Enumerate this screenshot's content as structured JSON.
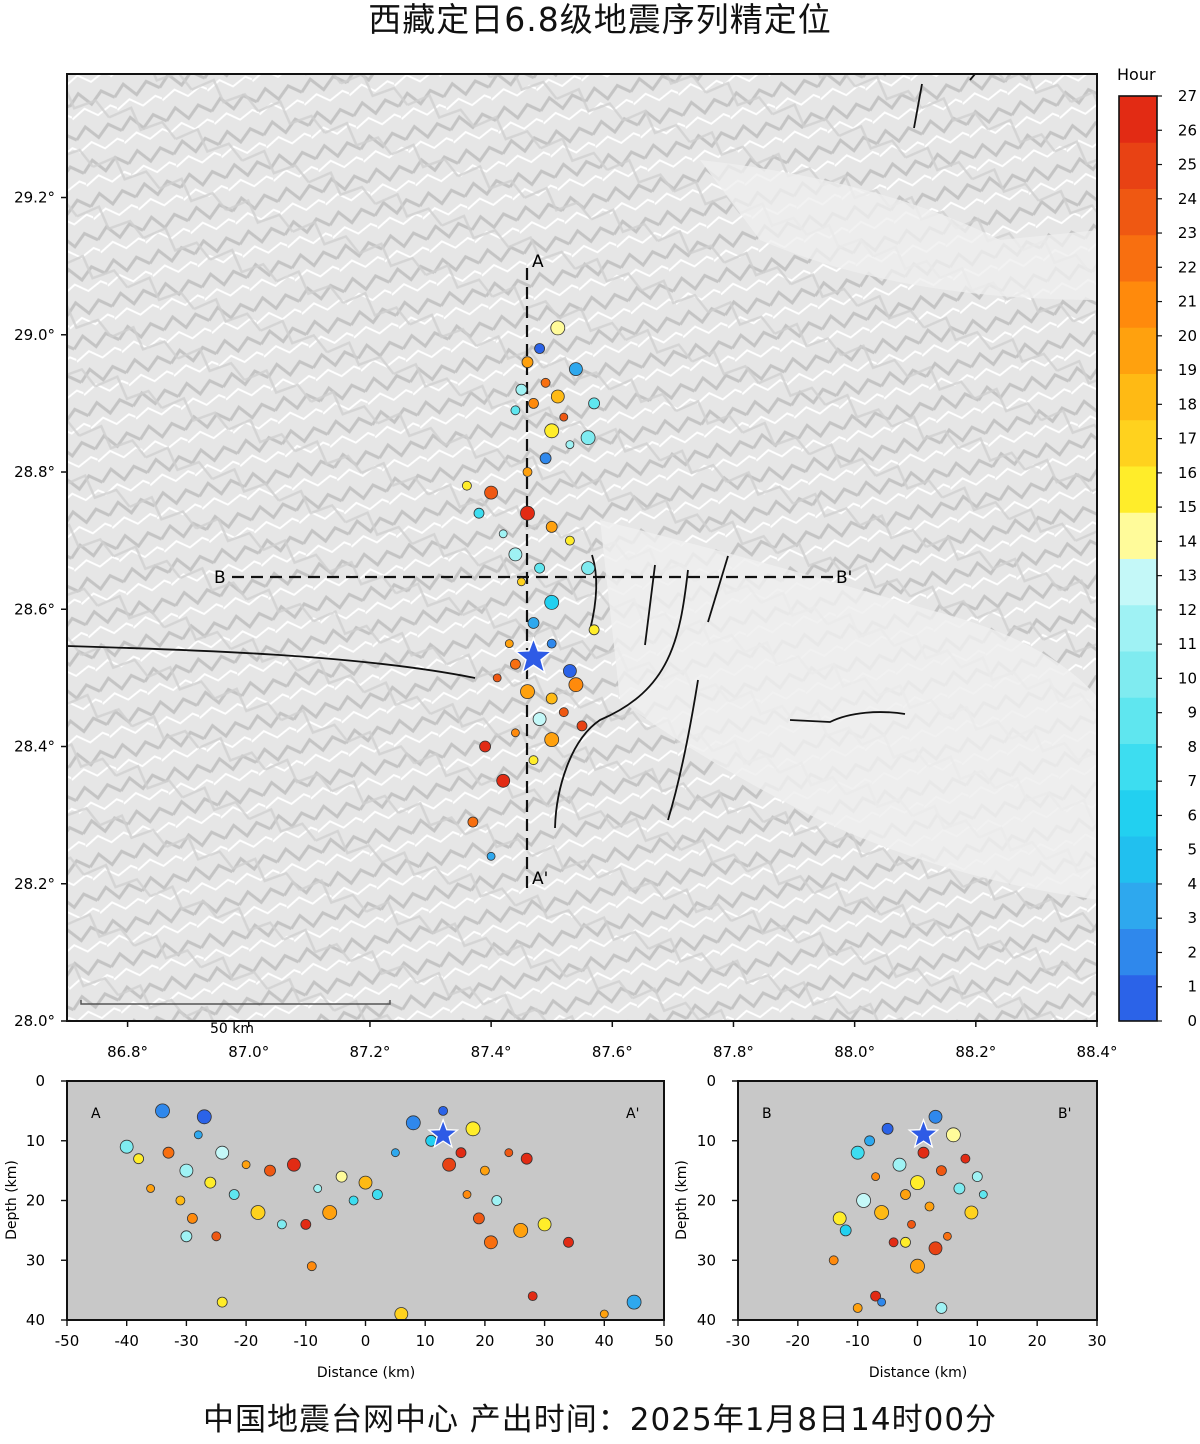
{
  "title": "西藏定日6.8级地震序列精定位",
  "footer": "中国地震台网中心  产出时间：2025年1月8日14时00分",
  "map": {
    "x_ticks": [
      "86.8°",
      "87.0°",
      "87.2°",
      "87.4°",
      "87.6°",
      "87.8°",
      "88.0°",
      "88.2°",
      "88.4°"
    ],
    "x_tick_values": [
      86.8,
      87.0,
      87.2,
      87.4,
      87.6,
      87.8,
      88.0,
      88.2,
      88.4
    ],
    "y_ticks": [
      "28.0°",
      "28.2°",
      "28.4°",
      "28.6°",
      "28.8°",
      "29.0°",
      "29.2°"
    ],
    "y_tick_values": [
      28.0,
      28.2,
      28.4,
      28.6,
      28.8,
      29.0,
      29.2
    ],
    "lon_range": [
      86.7,
      88.4
    ],
    "lat_range": [
      28.0,
      29.38
    ],
    "scale_label": "50 km",
    "profile_labels": {
      "a": "A",
      "a_end": "A'",
      "b": "B",
      "b_end": "B'"
    },
    "mainshock": {
      "lon": 87.47,
      "lat": 28.53,
      "color": "#2e5be6"
    }
  },
  "colorbar": {
    "title": "Hour",
    "ticks": [
      "0",
      "1",
      "2",
      "3",
      "4",
      "5",
      "6",
      "7",
      "8",
      "9",
      "10",
      "11",
      "12",
      "13",
      "14",
      "15",
      "16",
      "17",
      "18",
      "19",
      "20",
      "21",
      "22",
      "23",
      "24",
      "25",
      "26",
      "27"
    ],
    "colors": [
      "#2b63e8",
      "#2f88ec",
      "#2ea8ee",
      "#21c0ef",
      "#22d0f0",
      "#3dddf0",
      "#5fe6ef",
      "#7febf0",
      "#9ff2f4",
      "#c4f8f8",
      "#fffb9a",
      "#ffed2a",
      "#ffd21e",
      "#ffba14",
      "#ffa10e",
      "#ff8a0c",
      "#f86f10",
      "#ef5812",
      "#e84214",
      "#e22b14"
    ]
  },
  "profile_aa": {
    "corner_left": "A",
    "corner_right": "A'",
    "x_ticks": [
      "-50",
      "-40",
      "-30",
      "-20",
      "-10",
      "0",
      "10",
      "20",
      "30",
      "40",
      "50"
    ],
    "x_range": [
      -50,
      50
    ],
    "y_ticks": [
      "0",
      "10",
      "20",
      "30",
      "40"
    ],
    "y_range": [
      0,
      40
    ],
    "xlabel": "Distance (km)",
    "ylabel": "Depth (km)",
    "mainshock": {
      "dist": 13,
      "depth": 9
    }
  },
  "profile_bb": {
    "corner_left": "B",
    "corner_right": "B'",
    "x_ticks": [
      "-30",
      "-20",
      "-10",
      "0",
      "10",
      "20",
      "30"
    ],
    "x_range": [
      -30,
      30
    ],
    "y_ticks": [
      "0",
      "10",
      "20",
      "30",
      "40"
    ],
    "y_range": [
      0,
      40
    ],
    "xlabel": "Distance (km)",
    "ylabel": "Depth (km)",
    "mainshock": {
      "dist": 1,
      "depth": 9
    }
  },
  "chart_data": {
    "type": "scatter",
    "note_color_by": "Hour",
    "map_events": [
      {
        "lon": 87.46,
        "lat": 28.96,
        "hour": 20
      },
      {
        "lon": 87.49,
        "lat": 28.93,
        "hour": 22
      },
      {
        "lon": 87.51,
        "lat": 28.91,
        "hour": 18
      },
      {
        "lon": 87.47,
        "lat": 28.9,
        "hour": 21
      },
      {
        "lon": 87.52,
        "lat": 28.88,
        "hour": 24
      },
      {
        "lon": 87.5,
        "lat": 28.86,
        "hour": 16
      },
      {
        "lon": 87.45,
        "lat": 28.92,
        "hour": 11
      },
      {
        "lon": 87.44,
        "lat": 28.89,
        "hour": 9
      },
      {
        "lon": 87.54,
        "lat": 28.95,
        "hour": 3
      },
      {
        "lon": 87.48,
        "lat": 28.98,
        "hour": 1
      },
      {
        "lon": 87.53,
        "lat": 28.84,
        "hour": 12
      },
      {
        "lon": 87.56,
        "lat": 28.85,
        "hour": 10
      },
      {
        "lon": 87.49,
        "lat": 28.82,
        "hour": 2
      },
      {
        "lon": 87.46,
        "lat": 28.8,
        "hour": 19
      },
      {
        "lon": 87.4,
        "lat": 28.77,
        "hour": 23
      },
      {
        "lon": 87.38,
        "lat": 28.74,
        "hour": 8
      },
      {
        "lon": 87.42,
        "lat": 28.71,
        "hour": 11
      },
      {
        "lon": 87.46,
        "lat": 28.74,
        "hour": 26
      },
      {
        "lon": 87.5,
        "lat": 28.72,
        "hour": 20
      },
      {
        "lon": 87.53,
        "lat": 28.7,
        "hour": 15
      },
      {
        "lon": 87.44,
        "lat": 28.68,
        "hour": 12
      },
      {
        "lon": 87.48,
        "lat": 28.66,
        "hour": 9
      },
      {
        "lon": 87.45,
        "lat": 28.64,
        "hour": 17
      },
      {
        "lon": 87.5,
        "lat": 28.61,
        "hour": 6
      },
      {
        "lon": 87.47,
        "lat": 28.58,
        "hour": 4
      },
      {
        "lon": 87.5,
        "lat": 28.55,
        "hour": 2
      },
      {
        "lon": 87.53,
        "lat": 28.51,
        "hour": 1
      },
      {
        "lon": 87.44,
        "lat": 28.52,
        "hour": 22
      },
      {
        "lon": 87.41,
        "lat": 28.5,
        "hour": 24
      },
      {
        "lon": 87.46,
        "lat": 28.48,
        "hour": 20
      },
      {
        "lon": 87.5,
        "lat": 28.47,
        "hour": 18
      },
      {
        "lon": 87.52,
        "lat": 28.45,
        "hour": 23
      },
      {
        "lon": 87.48,
        "lat": 28.44,
        "hour": 13
      },
      {
        "lon": 87.55,
        "lat": 28.43,
        "hour": 25
      },
      {
        "lon": 87.44,
        "lat": 28.42,
        "hour": 21
      },
      {
        "lon": 87.5,
        "lat": 28.41,
        "hour": 19
      },
      {
        "lon": 87.39,
        "lat": 28.4,
        "hour": 27
      },
      {
        "lon": 87.47,
        "lat": 28.38,
        "hour": 16
      },
      {
        "lon": 87.42,
        "lat": 28.35,
        "hour": 27
      },
      {
        "lon": 87.37,
        "lat": 28.29,
        "hour": 22
      },
      {
        "lon": 87.4,
        "lat": 28.24,
        "hour": 4
      },
      {
        "lon": 87.51,
        "lat": 29.01,
        "hour": 14
      },
      {
        "lon": 87.57,
        "lat": 28.9,
        "hour": 9
      },
      {
        "lon": 87.36,
        "lat": 28.78,
        "hour": 15
      },
      {
        "lon": 87.56,
        "lat": 28.66,
        "hour": 10
      },
      {
        "lon": 87.57,
        "lat": 28.57,
        "hour": 16
      },
      {
        "lon": 87.43,
        "lat": 28.55,
        "hour": 19
      },
      {
        "lon": 87.54,
        "lat": 28.49,
        "hour": 21
      }
    ],
    "aa_events": [
      {
        "dist": -40,
        "depth": 11,
        "hour": 10
      },
      {
        "dist": -38,
        "depth": 13,
        "hour": 15
      },
      {
        "dist": -36,
        "depth": 18,
        "hour": 19
      },
      {
        "dist": -34,
        "depth": 5,
        "hour": 2
      },
      {
        "dist": -33,
        "depth": 12,
        "hour": 22
      },
      {
        "dist": -31,
        "depth": 20,
        "hour": 18
      },
      {
        "dist": -30,
        "depth": 15,
        "hour": 11
      },
      {
        "dist": -29,
        "depth": 23,
        "hour": 21
      },
      {
        "dist": -28,
        "depth": 9,
        "hour": 3
      },
      {
        "dist": -27,
        "depth": 6,
        "hour": 1
      },
      {
        "dist": -26,
        "depth": 17,
        "hour": 16
      },
      {
        "dist": -25,
        "depth": 26,
        "hour": 24
      },
      {
        "dist": -24,
        "depth": 12,
        "hour": 13
      },
      {
        "dist": -22,
        "depth": 19,
        "hour": 9
      },
      {
        "dist": -20,
        "depth": 14,
        "hour": 20
      },
      {
        "dist": -18,
        "depth": 22,
        "hour": 17
      },
      {
        "dist": -16,
        "depth": 15,
        "hour": 23
      },
      {
        "dist": -14,
        "depth": 24,
        "hour": 10
      },
      {
        "dist": -12,
        "depth": 14,
        "hour": 26
      },
      {
        "dist": -10,
        "depth": 24,
        "hour": 27
      },
      {
        "dist": -8,
        "depth": 18,
        "hour": 12
      },
      {
        "dist": -6,
        "depth": 22,
        "hour": 20
      },
      {
        "dist": -4,
        "depth": 16,
        "hour": 14
      },
      {
        "dist": -2,
        "depth": 20,
        "hour": 8
      },
      {
        "dist": 0,
        "depth": 17,
        "hour": 18
      },
      {
        "dist": 2,
        "depth": 19,
        "hour": 7
      },
      {
        "dist": 5,
        "depth": 12,
        "hour": 4
      },
      {
        "dist": 8,
        "depth": 7,
        "hour": 2
      },
      {
        "dist": 11,
        "depth": 10,
        "hour": 6
      },
      {
        "dist": 13,
        "depth": 5,
        "hour": 1
      },
      {
        "dist": 14,
        "depth": 14,
        "hour": 25
      },
      {
        "dist": 16,
        "depth": 12,
        "hour": 27
      },
      {
        "dist": 17,
        "depth": 19,
        "hour": 21
      },
      {
        "dist": 18,
        "depth": 8,
        "hour": 16
      },
      {
        "dist": 19,
        "depth": 23,
        "hour": 23
      },
      {
        "dist": 20,
        "depth": 15,
        "hour": 19
      },
      {
        "dist": 21,
        "depth": 27,
        "hour": 22
      },
      {
        "dist": 22,
        "depth": 20,
        "hour": 11
      },
      {
        "dist": 24,
        "depth": 12,
        "hour": 24
      },
      {
        "dist": 26,
        "depth": 25,
        "hour": 20
      },
      {
        "dist": 27,
        "depth": 13,
        "hour": 26
      },
      {
        "dist": 28,
        "depth": 36,
        "hour": 27
      },
      {
        "dist": 30,
        "depth": 24,
        "hour": 15
      },
      {
        "dist": 34,
        "depth": 27,
        "hour": 26
      },
      {
        "dist": 40,
        "depth": 39,
        "hour": 19
      },
      {
        "dist": 45,
        "depth": 37,
        "hour": 3
      },
      {
        "dist": -30,
        "depth": 26,
        "hour": 12
      },
      {
        "dist": -9,
        "depth": 31,
        "hour": 21
      },
      {
        "dist": 6,
        "depth": 39,
        "hour": 17
      },
      {
        "dist": -24,
        "depth": 37,
        "hour": 15
      }
    ],
    "bb_events": [
      {
        "dist": -10,
        "depth": 12,
        "hour": 8
      },
      {
        "dist": -8,
        "depth": 10,
        "hour": 3
      },
      {
        "dist": -7,
        "depth": 16,
        "hour": 21
      },
      {
        "dist": -6,
        "depth": 22,
        "hour": 18
      },
      {
        "dist": -5,
        "depth": 8,
        "hour": 1
      },
      {
        "dist": -4,
        "depth": 27,
        "hour": 27
      },
      {
        "dist": -3,
        "depth": 14,
        "hour": 12
      },
      {
        "dist": -2,
        "depth": 19,
        "hour": 20
      },
      {
        "dist": -1,
        "depth": 24,
        "hour": 23
      },
      {
        "dist": 0,
        "depth": 17,
        "hour": 15
      },
      {
        "dist": 1,
        "depth": 12,
        "hour": 27
      },
      {
        "dist": 2,
        "depth": 21,
        "hour": 19
      },
      {
        "dist": 3,
        "depth": 6,
        "hour": 2
      },
      {
        "dist": 4,
        "depth": 15,
        "hour": 24
      },
      {
        "dist": 5,
        "depth": 26,
        "hour": 22
      },
      {
        "dist": 6,
        "depth": 9,
        "hour": 14
      },
      {
        "dist": 7,
        "depth": 18,
        "hour": 10
      },
      {
        "dist": 8,
        "depth": 13,
        "hour": 26
      },
      {
        "dist": 9,
        "depth": 22,
        "hour": 17
      },
      {
        "dist": 10,
        "depth": 16,
        "hour": 11
      },
      {
        "dist": 11,
        "depth": 19,
        "hour": 9
      },
      {
        "dist": -9,
        "depth": 20,
        "hour": 13
      },
      {
        "dist": -12,
        "depth": 25,
        "hour": 6
      },
      {
        "dist": -14,
        "depth": 30,
        "hour": 21
      },
      {
        "dist": -13,
        "depth": 23,
        "hour": 15
      },
      {
        "dist": -7,
        "depth": 36,
        "hour": 27
      },
      {
        "dist": -6,
        "depth": 37,
        "hour": 2
      },
      {
        "dist": 0,
        "depth": 31,
        "hour": 19
      },
      {
        "dist": 4,
        "depth": 38,
        "hour": 12
      },
      {
        "dist": -10,
        "depth": 38,
        "hour": 20
      },
      {
        "dist": 3,
        "depth": 28,
        "hour": 25
      },
      {
        "dist": -2,
        "depth": 27,
        "hour": 16
      }
    ]
  }
}
